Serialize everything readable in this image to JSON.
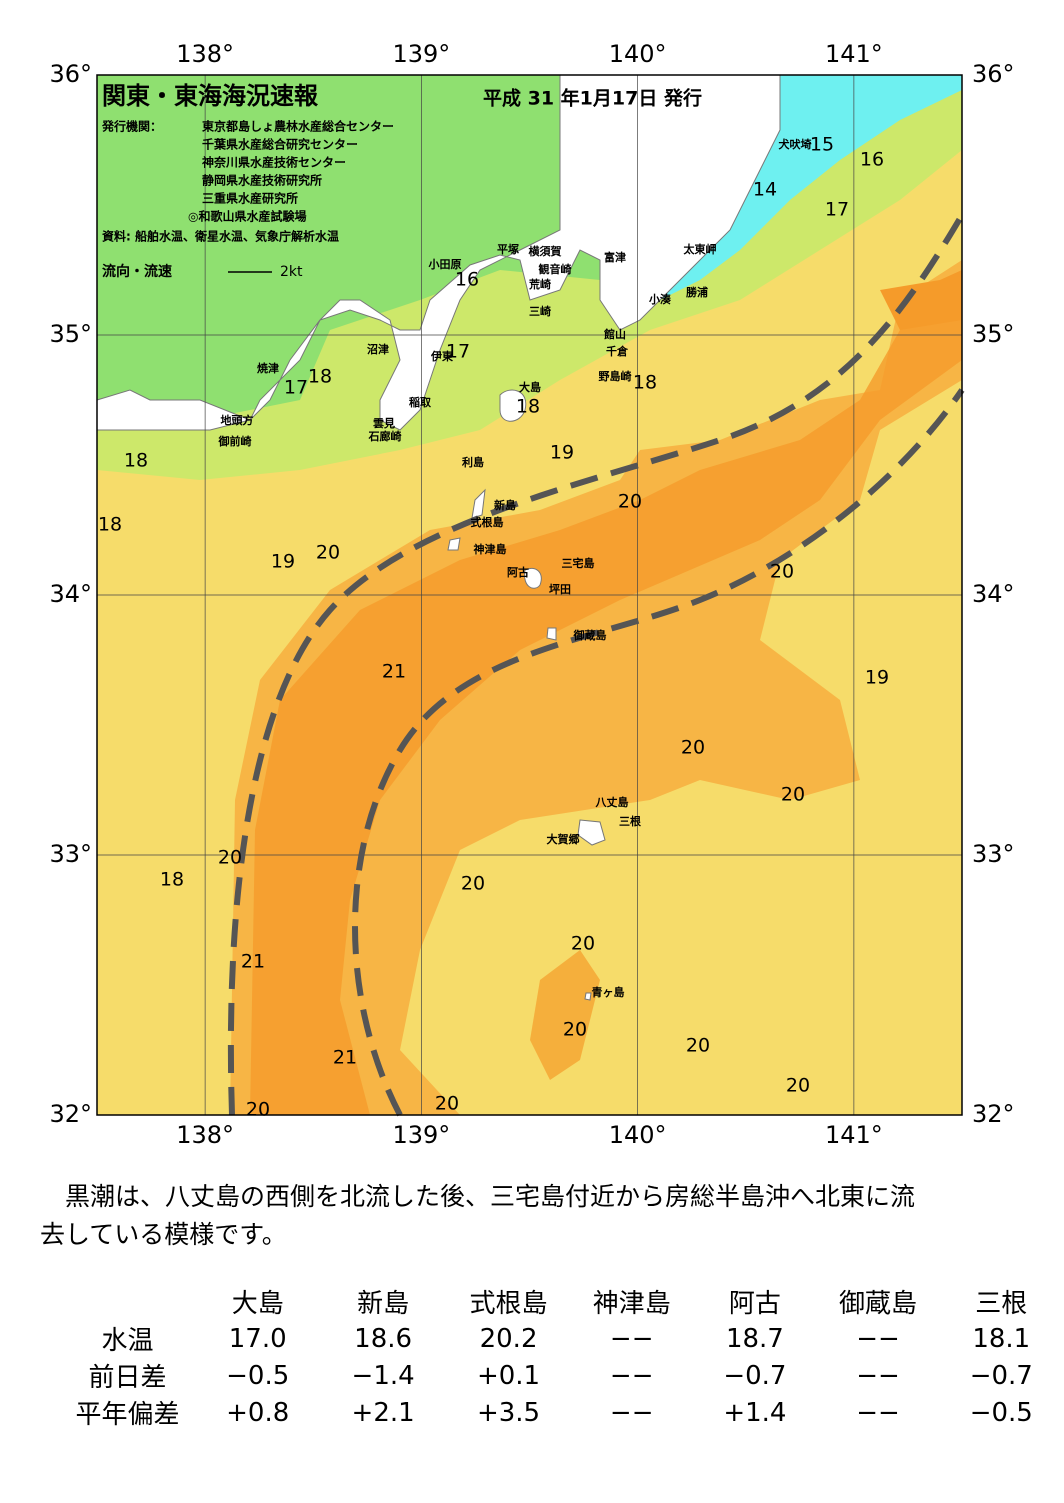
{
  "map": {
    "title": "関東・東海海況速報",
    "date": "平成 31 年1月17日 発行",
    "publisher_label": "発行機関：",
    "publishers": [
      "東京都島しょ農林水産総合センター",
      "千葉県水産総合研究センター",
      "神奈川県水産技術センター",
      "静岡県水産技術研究所",
      "三重県水産研究所",
      "◎和歌山県水産試験場"
    ],
    "source": "資料: 船舶水温、衛星水温、気象庁解析水温",
    "legend": {
      "label": "流向・流速",
      "scale": "2kt"
    },
    "lon_ticks": [
      {
        "value": 138,
        "label": "138°"
      },
      {
        "value": 139,
        "label": "139°"
      },
      {
        "value": 140,
        "label": "140°"
      },
      {
        "value": 141,
        "label": "141°"
      }
    ],
    "lat_ticks": [
      {
        "value": 36,
        "label": "36°"
      },
      {
        "value": 35,
        "label": "35°"
      },
      {
        "value": 34,
        "label": "34°"
      },
      {
        "value": 33,
        "label": "33°"
      },
      {
        "value": 32,
        "label": "32°"
      }
    ],
    "places": [
      "犬吠埼",
      "太東岬",
      "勝浦",
      "小湊",
      "富津",
      "横須賀",
      "観音崎",
      "平塚",
      "荒崎",
      "三崎",
      "小田原",
      "館山",
      "千倉",
      "野島崎",
      "沼津",
      "伊東",
      "焼津",
      "大島",
      "稲取",
      "雲見",
      "石廊崎",
      "地頭方",
      "御前崎",
      "利島",
      "新島",
      "式根島",
      "神津島",
      "三宅島",
      "阿古",
      "坪田",
      "御蔵島",
      "八丈島",
      "三根",
      "大賀郷",
      "青ヶ島"
    ],
    "isotherms": [
      15,
      16,
      14,
      17,
      16,
      17,
      18,
      17,
      18,
      18,
      19,
      18,
      18,
      19,
      20,
      20,
      20,
      21,
      19,
      20,
      20,
      20,
      18,
      20,
      21,
      20,
      20,
      20,
      21,
      20,
      20,
      20
    ]
  },
  "paragraph": [
    "　黒潮は、八丈島の西側を北流した後、三宅島付近から房総半島沖へ北東に流",
    "去している模様です。"
  ],
  "table": {
    "columns": [
      "大島",
      "新島",
      "式根島",
      "神津島",
      "阿古",
      "御蔵島",
      "三根"
    ],
    "rows": [
      {
        "label": "水温",
        "values": [
          "17.0",
          "18.6",
          "20.2",
          "−−",
          "18.7",
          "−−",
          "18.1"
        ]
      },
      {
        "label": "前日差",
        "values": [
          "−0.5",
          "−1.4",
          "+0.1",
          "−−",
          "−0.7",
          "−−",
          "−0.7"
        ]
      },
      {
        "label": "平年偏差",
        "values": [
          "+0.8",
          "+2.1",
          "+3.5",
          "−−",
          "+1.4",
          "−−",
          "−0.5"
        ]
      }
    ]
  }
}
